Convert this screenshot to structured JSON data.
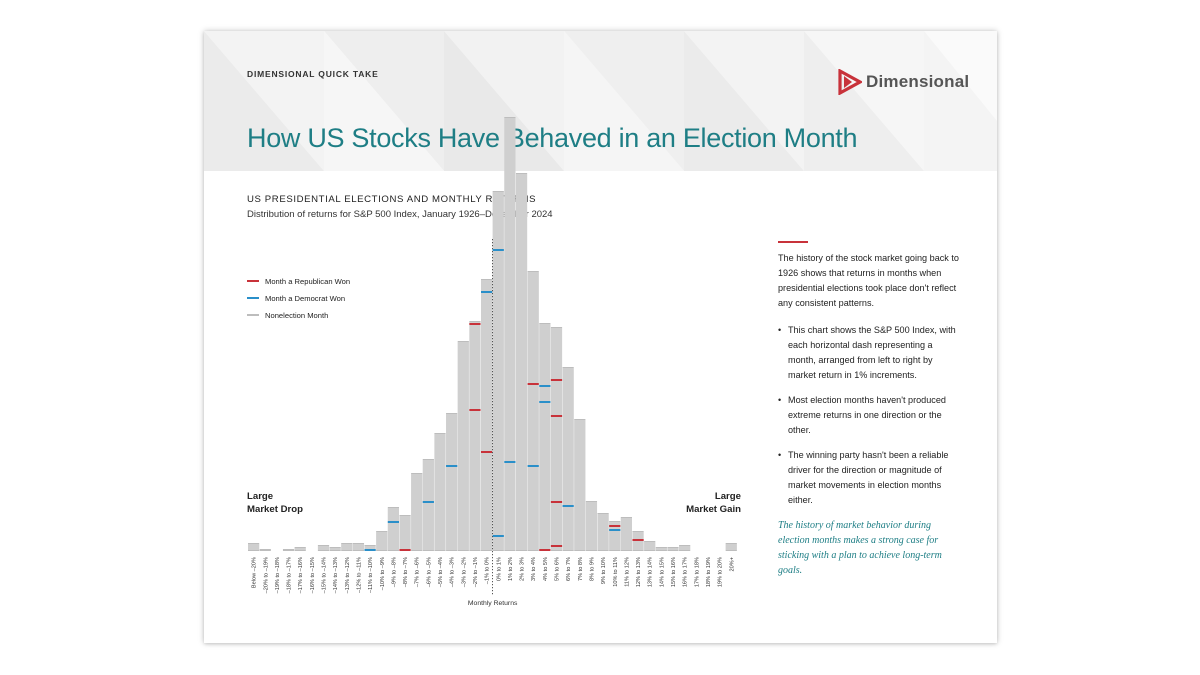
{
  "header": {
    "kicker": "DIMENSIONAL QUICK TAKE",
    "brand": "Dimensional",
    "brand_color": "#c8323a",
    "title": "How US Stocks Have Behaved in an Election Month"
  },
  "chart_section": {
    "heading": "US PRESIDENTIAL ELECTIONS AND MONTHLY RETURNS",
    "description": "Distribution of returns for S&P 500 Index, January 1926–December 2024"
  },
  "chart_data": {
    "type": "bar",
    "title": "US PRESIDENTIAL ELECTIONS AND MONTHLY RETURNS",
    "subtitle": "Distribution of returns for S&P 500 Index, January 1926–December 2024",
    "xlabel": "Monthly Returns",
    "ylabel": "",
    "left_annotation": "Large Market Drop",
    "right_annotation": "Large Market Gain",
    "legend_position": "top-left",
    "zero_marker_after_category": "–1% to 0%",
    "colors": {
      "republican": "#c8323a",
      "democrat": "#2a8fc9",
      "nonelection": "#bdbdbd"
    },
    "legend": [
      {
        "label": "Month a Republican Won",
        "key": "republican"
      },
      {
        "label": "Month a Democrat Won",
        "key": "democrat"
      },
      {
        "label": "Nonelection Month",
        "key": "nonelection"
      }
    ],
    "categories": [
      "Below –20%",
      "–20% to –19%",
      "–19% to –18%",
      "–18% to –17%",
      "–17% to –16%",
      "–16% to –15%",
      "–15% to –14%",
      "–14% to –13%",
      "–13% to –12%",
      "–12% to –11%",
      "–11% to –10%",
      "–10% to –9%",
      "–9% to –8%",
      "–8% to –7%",
      "–7% to –6%",
      "–6% to –5%",
      "–5% to –4%",
      "–4% to –3%",
      "–3% to –2%",
      "–2% to –1%",
      "–1% to 0%",
      "0% to 1%",
      "1% to 2%",
      "2% to 3%",
      "3% to 4%",
      "4% to 5%",
      "5% to 6%",
      "6% to 7%",
      "7% to 8%",
      "8% to 9%",
      "9% to 10%",
      "10% to 11%",
      "11% to 12%",
      "12% to 13%",
      "13% to 14%",
      "14% to 15%",
      "15% to 16%",
      "16% to 17%",
      "17% to 18%",
      "18% to 19%",
      "19% to 20%",
      "20%+"
    ],
    "values": [
      4,
      1,
      0,
      1,
      2,
      0,
      3,
      2,
      4,
      4,
      3,
      10,
      22,
      18,
      39,
      46,
      59,
      69,
      105,
      115,
      136,
      180,
      217,
      189,
      140,
      114,
      112,
      92,
      66,
      25,
      19,
      15,
      17,
      10,
      5,
      2,
      2,
      3,
      0,
      0,
      0,
      4
    ],
    "election_months": [
      {
        "category": "–11% to –10%",
        "party": "democrat",
        "position": 1
      },
      {
        "category": "–9% to –8%",
        "party": "democrat",
        "position": 15
      },
      {
        "category": "–8% to –7%",
        "party": "republican",
        "position": 1
      },
      {
        "category": "–6% to –5%",
        "party": "democrat",
        "position": 25
      },
      {
        "category": "–4% to –3%",
        "party": "democrat",
        "position": 43
      },
      {
        "category": "–2% to –1%",
        "party": "republican",
        "position": 71
      },
      {
        "category": "–2% to –1%",
        "party": "republican",
        "position": 114
      },
      {
        "category": "–1% to 0%",
        "party": "republican",
        "position": 50
      },
      {
        "category": "–1% to 0%",
        "party": "democrat",
        "position": 130
      },
      {
        "category": "0% to 1%",
        "party": "democrat",
        "position": 8
      },
      {
        "category": "0% to 1%",
        "party": "democrat",
        "position": 151
      },
      {
        "category": "1% to 2%",
        "party": "democrat",
        "position": 45
      },
      {
        "category": "3% to 4%",
        "party": "democrat",
        "position": 43
      },
      {
        "category": "3% to 4%",
        "party": "republican",
        "position": 84
      },
      {
        "category": "4% to 5%",
        "party": "republican",
        "position": 1
      },
      {
        "category": "4% to 5%",
        "party": "democrat",
        "position": 75
      },
      {
        "category": "4% to 5%",
        "party": "democrat",
        "position": 83
      },
      {
        "category": "5% to 6%",
        "party": "republican",
        "position": 3
      },
      {
        "category": "5% to 6%",
        "party": "republican",
        "position": 25
      },
      {
        "category": "5% to 6%",
        "party": "republican",
        "position": 68
      },
      {
        "category": "5% to 6%",
        "party": "republican",
        "position": 86
      },
      {
        "category": "6% to 7%",
        "party": "democrat",
        "position": 23
      },
      {
        "category": "10% to 11%",
        "party": "democrat",
        "position": 11
      },
      {
        "category": "10% to 11%",
        "party": "republican",
        "position": 13
      },
      {
        "category": "12% to 13%",
        "party": "republican",
        "position": 6
      }
    ]
  },
  "sidebar": {
    "intro": "The history of the stock market going back to 1926 shows that returns in months when presidential elections took place don't reflect any consistent patterns.",
    "bullets": [
      "This chart shows the S&P 500 Index, with each horizontal dash representing a month, arranged from left to right by market return in 1% increments.",
      "Most election months haven't produced extreme returns in one direction or the other.",
      "The winning party hasn't been a reliable driver for the direction or magnitude of market movements in election months either."
    ],
    "quote": "The history of market behavior during election months makes a strong case for sticking with a plan to achieve long-term goals."
  }
}
